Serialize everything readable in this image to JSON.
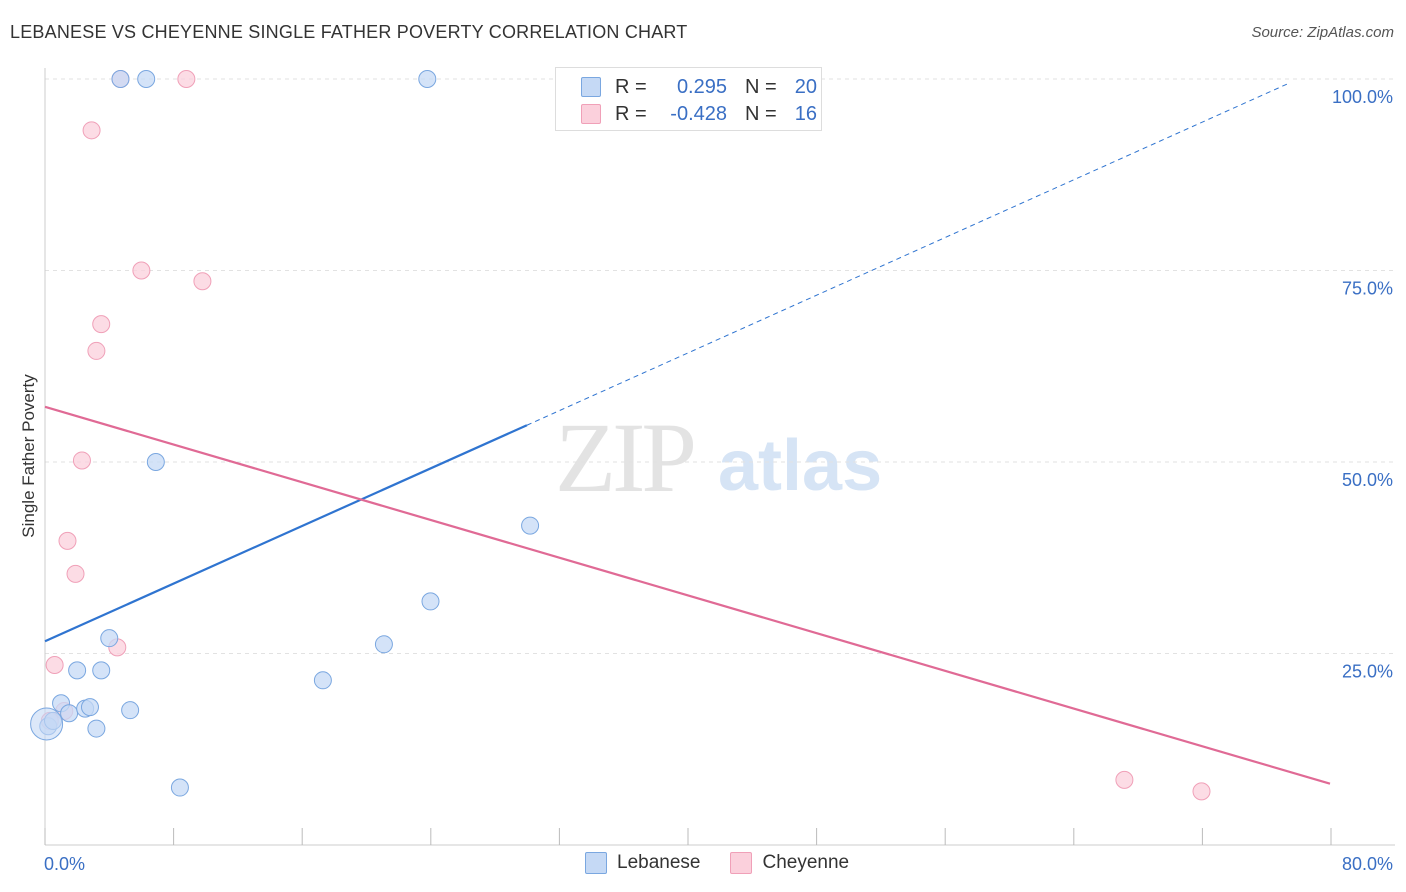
{
  "title": "LEBANESE VS CHEYENNE SINGLE FATHER POVERTY CORRELATION CHART",
  "source": "Source: ZipAtlas.com",
  "watermark": {
    "zip": "ZIP",
    "atlas": "atlas"
  },
  "colors": {
    "lebanese_fill": "#c5d9f5",
    "lebanese_stroke": "#7aa7e0",
    "lebanese_line": "#2f74d0",
    "cheyenne_fill": "#fbd0dc",
    "cheyenne_stroke": "#f0a0b8",
    "cheyenne_line": "#e06a95",
    "tick_label": "#3a6fc4"
  },
  "legend": {
    "rows": [
      {
        "name": "Lebanese",
        "r_label": "R =",
        "r_value": "0.295",
        "n_label": "N =",
        "n_value": "20"
      },
      {
        "name": "Cheyenne",
        "r_label": "R =",
        "r_value": "-0.428",
        "n_label": "N =",
        "n_value": "16"
      }
    ]
  },
  "chart_data": {
    "type": "scatter",
    "title": "LEBANESE VS CHEYENNE SINGLE FATHER POVERTY CORRELATION CHART",
    "xlabel": "",
    "ylabel": "Single Father Poverty",
    "xlim": [
      0,
      80
    ],
    "ylim": [
      0,
      100
    ],
    "x_tick_labels": [
      "0.0%",
      "80.0%"
    ],
    "y_ticks": [
      25,
      50,
      75,
      100
    ],
    "y_tick_labels": [
      "25.0%",
      "50.0%",
      "75.0%",
      "100.0%"
    ],
    "grid": true,
    "series": [
      {
        "name": "Lebanese",
        "points": [
          [
            0.2,
            15.5
          ],
          [
            1.0,
            18.5
          ],
          [
            1.5,
            17.2
          ],
          [
            2.0,
            22.8
          ],
          [
            2.5,
            17.8
          ],
          [
            2.8,
            18.0
          ],
          [
            3.2,
            15.2
          ],
          [
            3.5,
            22.8
          ],
          [
            4.0,
            27.0
          ],
          [
            4.7,
            100
          ],
          [
            5.3,
            17.6
          ],
          [
            6.3,
            100
          ],
          [
            6.9,
            50.0
          ],
          [
            8.4,
            7.5
          ],
          [
            17.3,
            21.5
          ],
          [
            21.1,
            26.2
          ],
          [
            23.8,
            100
          ],
          [
            24.0,
            31.8
          ],
          [
            30.2,
            41.7
          ],
          [
            0.5,
            16.2
          ]
        ],
        "trend": {
          "x_start": 0,
          "y_start": 26.6,
          "x_solid_end": 30.0,
          "y_solid_end": 54.8,
          "x_end": 77.5,
          "y_end": 99.5
        }
      },
      {
        "name": "Cheyenne",
        "points": [
          [
            0.3,
            16.2
          ],
          [
            0.6,
            23.5
          ],
          [
            1.2,
            17.5
          ],
          [
            1.4,
            39.7
          ],
          [
            1.9,
            35.4
          ],
          [
            2.3,
            50.2
          ],
          [
            2.9,
            93.3
          ],
          [
            3.2,
            64.5
          ],
          [
            3.5,
            68.0
          ],
          [
            4.5,
            25.8
          ],
          [
            4.7,
            100
          ],
          [
            6.0,
            75.0
          ],
          [
            8.8,
            100
          ],
          [
            9.8,
            73.6
          ],
          [
            67.2,
            8.5
          ],
          [
            72.0,
            7.0
          ]
        ],
        "trend": {
          "x_start": 0,
          "y_start": 57.2,
          "x_end": 80,
          "y_end": 8.0
        }
      }
    ]
  }
}
